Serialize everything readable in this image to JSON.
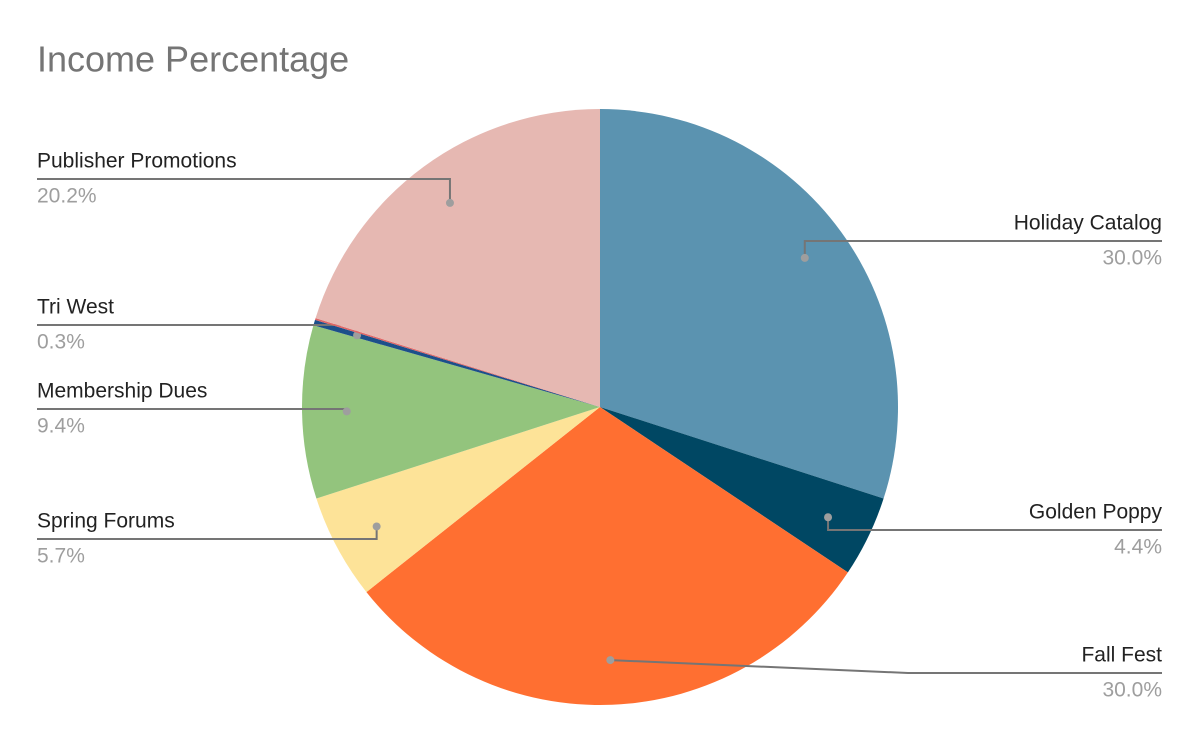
{
  "chart_data": {
    "type": "pie",
    "title": "Income Percentage",
    "categories": [
      "Holiday Catalog",
      "Golden Poppy",
      "Fall Fest",
      "Spring Forums",
      "Membership Dues",
      "Tri West",
      null,
      "Publisher Promotions"
    ],
    "values": [
      30.0,
      4.4,
      30.0,
      5.7,
      9.4,
      0.3,
      0.1,
      20.2
    ],
    "value_labels": [
      "30.0%",
      "4.4%",
      "30.0%",
      "5.7%",
      "9.4%",
      "0.3%",
      null,
      "20.2%"
    ],
    "colors": [
      "#5b93b0",
      "#004763",
      "#ff6f31",
      "#fde398",
      "#93c47d",
      "#1c4f8a",
      "#e06666",
      "#e6b8b2"
    ]
  }
}
